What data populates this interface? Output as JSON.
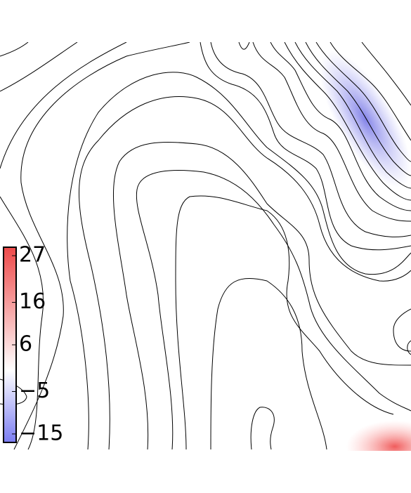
{
  "chart_data": {
    "type": "contour",
    "colorbar": {
      "clim": [
        -17,
        29
      ],
      "low_color": "#7a7cf2",
      "mid_color": "#ffffff",
      "high_color": "#ee4a4a",
      "ticks": [
        27,
        16,
        6,
        {
          "value": -5,
          "label": "−5"
        },
        {
          "value": -15,
          "label": "−15"
        }
      ]
    }
  }
}
